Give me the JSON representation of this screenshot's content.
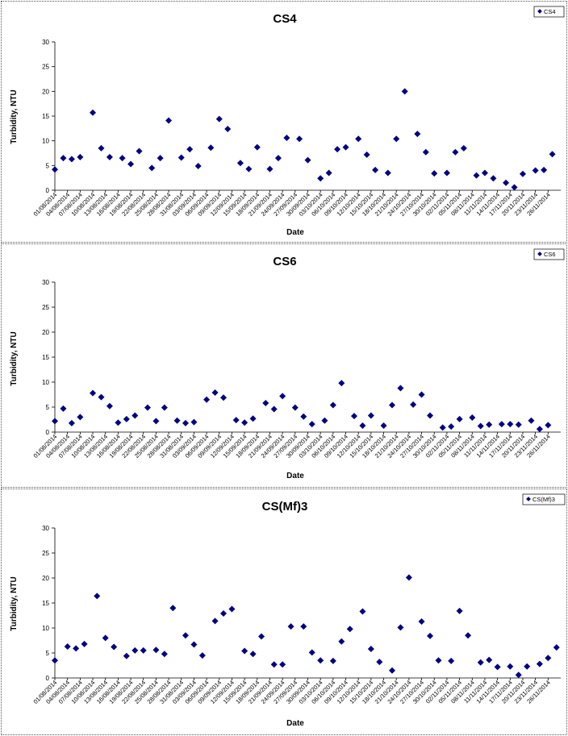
{
  "chart_data": [
    {
      "type": "scatter",
      "title": "CS4",
      "xlabel": "Date",
      "ylabel": "Turbidity, NTU",
      "ylim": [
        0,
        30
      ],
      "yticks": [
        0,
        5,
        10,
        15,
        20,
        25,
        30
      ],
      "xlim": [
        "01/08/2014",
        "29/11/2014"
      ],
      "xticks": [
        "01/08/2014",
        "04/08/2014",
        "07/08/2014",
        "10/08/2014",
        "13/08/2014",
        "16/08/2014",
        "19/08/2014",
        "22/08/2014",
        "25/08/2014",
        "28/08/2014",
        "31/08/2014",
        "03/09/2014",
        "06/09/2014",
        "09/09/2014",
        "12/09/2014",
        "15/09/2014",
        "18/09/2014",
        "21/09/2014",
        "24/09/2014",
        "27/09/2014",
        "30/09/2014",
        "03/10/2014",
        "06/10/2014",
        "09/10/2014",
        "12/10/2014",
        "15/10/2014",
        "18/10/2014",
        "21/10/2014",
        "24/10/2014",
        "27/10/2014",
        "30/10/2014",
        "02/11/2014",
        "05/11/2014",
        "08/11/2014",
        "11/11/2014",
        "14/11/2014",
        "17/11/2014",
        "20/11/2014",
        "23/11/2014",
        "26/11/2014"
      ],
      "legend": "top-right",
      "marker_color": "#000080",
      "series": [
        {
          "name": "CS4",
          "points": [
            [
              "01/08/2014",
              4.2
            ],
            [
              "03/08/2014",
              6.5
            ],
            [
              "05/08/2014",
              6.3
            ],
            [
              "07/08/2014",
              6.7
            ],
            [
              "10/08/2014",
              15.7
            ],
            [
              "12/08/2014",
              8.5
            ],
            [
              "14/08/2014",
              6.7
            ],
            [
              "17/08/2014",
              6.5
            ],
            [
              "19/08/2014",
              5.3
            ],
            [
              "21/08/2014",
              7.9
            ],
            [
              "24/08/2014",
              4.5
            ],
            [
              "26/08/2014",
              6.5
            ],
            [
              "28/08/2014",
              14.1
            ],
            [
              "31/08/2014",
              6.6
            ],
            [
              "02/09/2014",
              8.3
            ],
            [
              "04/09/2014",
              4.9
            ],
            [
              "07/09/2014",
              8.6
            ],
            [
              "09/09/2014",
              14.4
            ],
            [
              "11/09/2014",
              12.4
            ],
            [
              "14/09/2014",
              5.5
            ],
            [
              "16/09/2014",
              4.3
            ],
            [
              "18/09/2014",
              8.7
            ],
            [
              "21/09/2014",
              4.3
            ],
            [
              "23/09/2014",
              6.5
            ],
            [
              "25/09/2014",
              10.6
            ],
            [
              "28/09/2014",
              10.4
            ],
            [
              "30/09/2014",
              6.1
            ],
            [
              "03/10/2014",
              2.4
            ],
            [
              "05/10/2014",
              3.5
            ],
            [
              "07/10/2014",
              8.3
            ],
            [
              "09/10/2014",
              8.7
            ],
            [
              "12/10/2014",
              10.4
            ],
            [
              "14/10/2014",
              7.2
            ],
            [
              "16/10/2014",
              4.1
            ],
            [
              "19/10/2014",
              3.5
            ],
            [
              "21/10/2014",
              10.4
            ],
            [
              "23/10/2014",
              20.0
            ],
            [
              "26/10/2014",
              11.4
            ],
            [
              "28/10/2014",
              7.7
            ],
            [
              "30/10/2014",
              3.4
            ],
            [
              "02/11/2014",
              3.5
            ],
            [
              "04/11/2014",
              7.7
            ],
            [
              "06/11/2014",
              8.5
            ],
            [
              "09/11/2014",
              3.0
            ],
            [
              "11/11/2014",
              3.5
            ],
            [
              "13/11/2014",
              2.4
            ],
            [
              "16/11/2014",
              1.5
            ],
            [
              "18/11/2014",
              0.6
            ],
            [
              "20/11/2014",
              3.3
            ],
            [
              "23/11/2014",
              4.0
            ],
            [
              "25/11/2014",
              4.1
            ],
            [
              "27/11/2014",
              7.3
            ]
          ]
        }
      ]
    },
    {
      "type": "scatter",
      "title": "CS6",
      "xlabel": "Date",
      "ylabel": "Turbidity, NTU",
      "ylim": [
        0,
        30
      ],
      "yticks": [
        0,
        5,
        10,
        15,
        20,
        25,
        30
      ],
      "xlim": [
        "01/08/2014",
        "29/11/2014"
      ],
      "xticks": [
        "01/08/2014",
        "04/08/2014",
        "07/08/2014",
        "10/08/2014",
        "13/08/2014",
        "16/08/2014",
        "19/08/2014",
        "22/08/2014",
        "25/08/2014",
        "28/08/2014",
        "31/08/2014",
        "03/09/2014",
        "06/09/2014",
        "09/09/2014",
        "12/09/2014",
        "15/09/2014",
        "18/09/2014",
        "21/09/2014",
        "24/09/2014",
        "27/09/2014",
        "30/09/2014",
        "03/10/2014",
        "06/10/2014",
        "09/10/2014",
        "12/10/2014",
        "15/10/2014",
        "18/10/2014",
        "21/10/2014",
        "24/10/2014",
        "27/10/2014",
        "30/10/2014",
        "02/11/2014",
        "05/11/2014",
        "08/11/2014",
        "11/11/2014",
        "14/11/2014",
        "17/11/2014",
        "20/11/2014",
        "23/11/2014",
        "26/11/2014"
      ],
      "legend": "top-right",
      "marker_color": "#000080",
      "series": [
        {
          "name": "CS6",
          "points": [
            [
              "01/08/2014",
              2.2
            ],
            [
              "03/08/2014",
              4.7
            ],
            [
              "05/08/2014",
              1.8
            ],
            [
              "07/08/2014",
              3.0
            ],
            [
              "10/08/2014",
              7.8
            ],
            [
              "12/08/2014",
              7.0
            ],
            [
              "14/08/2014",
              5.2
            ],
            [
              "16/08/2014",
              1.9
            ],
            [
              "18/08/2014",
              2.6
            ],
            [
              "20/08/2014",
              3.3
            ],
            [
              "23/08/2014",
              4.9
            ],
            [
              "25/08/2014",
              2.2
            ],
            [
              "27/08/2014",
              4.9
            ],
            [
              "30/08/2014",
              2.3
            ],
            [
              "01/09/2014",
              1.8
            ],
            [
              "03/09/2014",
              2.0
            ],
            [
              "06/09/2014",
              6.5
            ],
            [
              "08/09/2014",
              7.9
            ],
            [
              "10/09/2014",
              6.9
            ],
            [
              "13/09/2014",
              2.4
            ],
            [
              "15/09/2014",
              1.9
            ],
            [
              "17/09/2014",
              2.7
            ],
            [
              "20/09/2014",
              5.8
            ],
            [
              "22/09/2014",
              4.6
            ],
            [
              "24/09/2014",
              7.2
            ],
            [
              "27/09/2014",
              4.9
            ],
            [
              "29/09/2014",
              3.1
            ],
            [
              "01/10/2014",
              1.6
            ],
            [
              "04/10/2014",
              2.3
            ],
            [
              "06/10/2014",
              5.4
            ],
            [
              "08/10/2014",
              9.8
            ],
            [
              "11/10/2014",
              3.2
            ],
            [
              "13/10/2014",
              1.3
            ],
            [
              "15/10/2014",
              3.3
            ],
            [
              "18/10/2014",
              1.3
            ],
            [
              "20/10/2014",
              5.4
            ],
            [
              "22/10/2014",
              8.8
            ],
            [
              "25/10/2014",
              5.5
            ],
            [
              "27/10/2014",
              7.5
            ],
            [
              "29/10/2014",
              3.3
            ],
            [
              "01/11/2014",
              0.9
            ],
            [
              "03/11/2014",
              1.1
            ],
            [
              "05/11/2014",
              2.6
            ],
            [
              "08/11/2014",
              2.9
            ],
            [
              "10/11/2014",
              1.2
            ],
            [
              "12/11/2014",
              1.5
            ],
            [
              "15/11/2014",
              1.6
            ],
            [
              "17/11/2014",
              1.6
            ],
            [
              "19/11/2014",
              1.5
            ],
            [
              "22/11/2014",
              2.3
            ],
            [
              "24/11/2014",
              0.6
            ],
            [
              "26/11/2014",
              1.4
            ]
          ]
        }
      ]
    },
    {
      "type": "scatter",
      "title": "CS(Mf)3",
      "xlabel": "Date",
      "ylabel": "Turbidity, NTU",
      "ylim": [
        0,
        30
      ],
      "yticks": [
        0,
        5,
        10,
        15,
        20,
        25,
        30
      ],
      "xlim": [
        "01/08/2014",
        "29/11/2014"
      ],
      "xticks": [
        "01/08/2014",
        "04/08/2014",
        "07/08/2014",
        "10/08/2014",
        "13/08/2014",
        "16/08/2014",
        "19/08/2014",
        "22/08/2014",
        "25/08/2014",
        "28/08/2014",
        "31/08/2014",
        "03/09/2014",
        "06/09/2014",
        "09/09/2014",
        "12/09/2014",
        "15/09/2014",
        "18/09/2014",
        "21/09/2014",
        "24/09/2014",
        "27/09/2014",
        "30/09/2014",
        "03/10/2014",
        "06/10/2014",
        "09/10/2014",
        "12/10/2014",
        "15/10/2014",
        "18/10/2014",
        "21/10/2014",
        "24/10/2014",
        "27/10/2014",
        "30/10/2014",
        "02/11/2014",
        "05/11/2014",
        "08/11/2014",
        "11/11/2014",
        "14/11/2014",
        "17/11/2014",
        "20/11/2014",
        "23/11/2014",
        "26/11/2014"
      ],
      "legend": "top-right",
      "marker_color": "#000080",
      "series": [
        {
          "name": "CS(Mf)3",
          "points": [
            [
              "01/08/2014",
              3.5
            ],
            [
              "04/08/2014",
              6.3
            ],
            [
              "06/08/2014",
              5.9
            ],
            [
              "08/08/2014",
              6.8
            ],
            [
              "11/08/2014",
              16.4
            ],
            [
              "13/08/2014",
              8.0
            ],
            [
              "15/08/2014",
              6.2
            ],
            [
              "18/08/2014",
              4.4
            ],
            [
              "20/08/2014",
              5.5
            ],
            [
              "22/08/2014",
              5.5
            ],
            [
              "25/08/2014",
              5.6
            ],
            [
              "27/08/2014",
              4.8
            ],
            [
              "29/08/2014",
              14.0
            ],
            [
              "01/09/2014",
              8.5
            ],
            [
              "03/09/2014",
              6.7
            ],
            [
              "05/09/2014",
              4.5
            ],
            [
              "08/09/2014",
              11.4
            ],
            [
              "10/09/2014",
              12.9
            ],
            [
              "12/09/2014",
              13.8
            ],
            [
              "15/09/2014",
              5.4
            ],
            [
              "17/09/2014",
              4.8
            ],
            [
              "19/09/2014",
              8.3
            ],
            [
              "22/09/2014",
              2.7
            ],
            [
              "24/09/2014",
              2.7
            ],
            [
              "26/09/2014",
              10.3
            ],
            [
              "29/09/2014",
              10.3
            ],
            [
              "01/10/2014",
              5.1
            ],
            [
              "03/10/2014",
              3.5
            ],
            [
              "06/10/2014",
              3.4
            ],
            [
              "08/10/2014",
              7.3
            ],
            [
              "10/10/2014",
              9.8
            ],
            [
              "13/10/2014",
              13.3
            ],
            [
              "15/10/2014",
              5.8
            ],
            [
              "17/10/2014",
              3.2
            ],
            [
              "20/10/2014",
              1.5
            ],
            [
              "22/10/2014",
              10.1
            ],
            [
              "24/10/2014",
              20.1
            ],
            [
              "27/10/2014",
              11.3
            ],
            [
              "29/10/2014",
              8.4
            ],
            [
              "31/10/2014",
              3.5
            ],
            [
              "03/11/2014",
              3.4
            ],
            [
              "05/11/2014",
              13.4
            ],
            [
              "07/11/2014",
              8.5
            ],
            [
              "10/11/2014",
              3.1
            ],
            [
              "12/11/2014",
              3.6
            ],
            [
              "14/11/2014",
              2.2
            ],
            [
              "17/11/2014",
              2.3
            ],
            [
              "19/11/2014",
              0.6
            ],
            [
              "21/11/2014",
              2.3
            ],
            [
              "24/11/2014",
              2.8
            ],
            [
              "26/11/2014",
              4.0
            ],
            [
              "28/11/2014",
              6.1
            ]
          ]
        }
      ]
    }
  ]
}
